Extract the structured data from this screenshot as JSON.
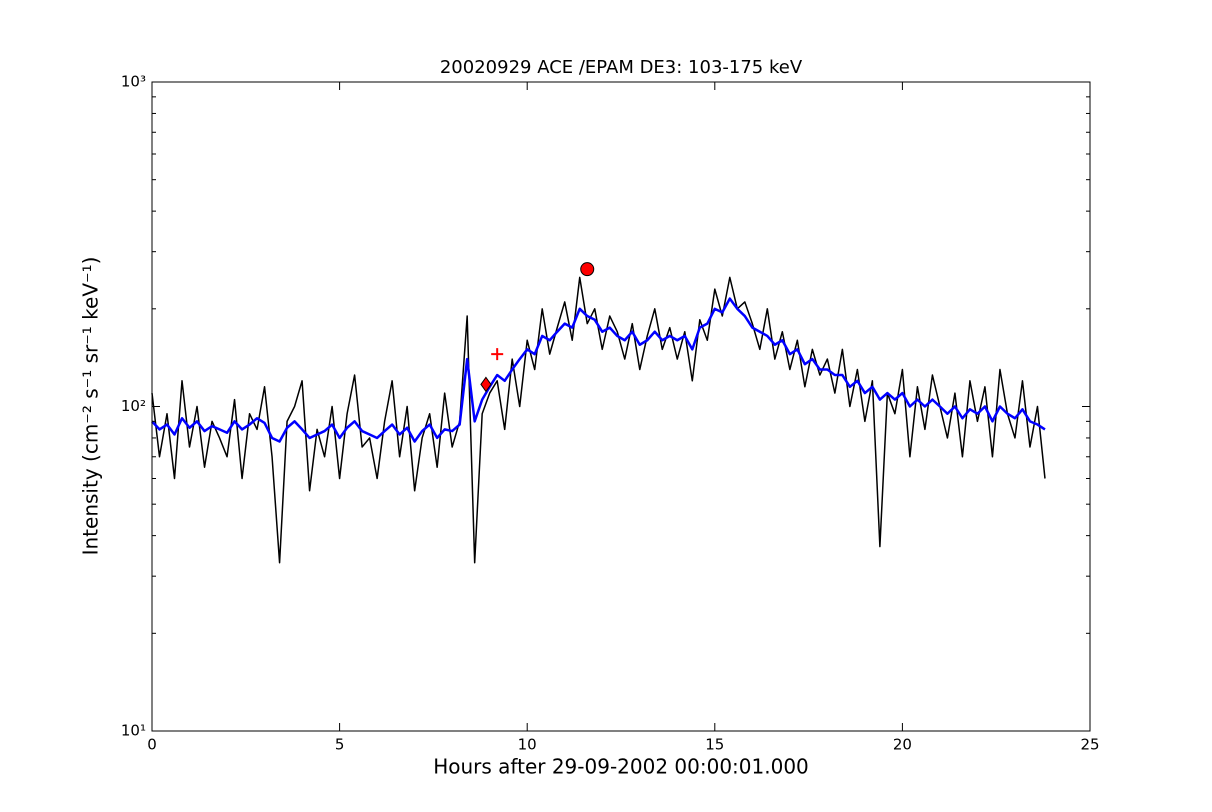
{
  "chart_data": {
    "type": "line",
    "title": "20020929 ACE /EPAM DE3: 103-175 keV",
    "xlabel": "Hours after 29-09-2002 00:00:01.000",
    "ylabel": "Intensity (cm⁻² s⁻¹ sr⁻¹ keV⁻¹)",
    "xlim": [
      0,
      25
    ],
    "ylim": [
      10,
      1000
    ],
    "ylog": true,
    "xticks": [
      0,
      5,
      10,
      15,
      20,
      25
    ],
    "yticks": [
      {
        "value": 10,
        "label": "10¹"
      },
      {
        "value": 100,
        "label": "10²"
      },
      {
        "value": 1000,
        "label": "10³"
      }
    ],
    "yminorticks": [
      20,
      30,
      40,
      50,
      60,
      70,
      80,
      90,
      200,
      300,
      400,
      500,
      600,
      700,
      800,
      900
    ],
    "x": [
      0,
      0.2,
      0.4,
      0.6,
      0.8,
      1,
      1.2,
      1.4,
      1.6,
      1.8,
      2,
      2.2,
      2.4,
      2.6,
      2.8,
      3,
      3.2,
      3.4,
      3.6,
      3.8,
      4,
      4.2,
      4.4,
      4.6,
      4.8,
      5,
      5.2,
      5.4,
      5.6,
      5.8,
      6,
      6.2,
      6.4,
      6.6,
      6.8,
      7,
      7.2,
      7.4,
      7.6,
      7.8,
      8,
      8.2,
      8.4,
      8.6,
      8.8,
      9,
      9.2,
      9.4,
      9.6,
      9.8,
      10,
      10.2,
      10.4,
      10.6,
      10.8,
      11,
      11.2,
      11.4,
      11.6,
      11.8,
      12,
      12.2,
      12.4,
      12.6,
      12.8,
      13,
      13.2,
      13.4,
      13.6,
      13.8,
      14,
      14.2,
      14.4,
      14.6,
      14.8,
      15,
      15.2,
      15.4,
      15.6,
      15.8,
      16,
      16.2,
      16.4,
      16.6,
      16.8,
      17,
      17.2,
      17.4,
      17.6,
      17.8,
      18,
      18.2,
      18.4,
      18.6,
      18.8,
      19,
      19.2,
      19.4,
      19.6,
      19.8,
      20,
      20.2,
      20.4,
      20.6,
      20.8,
      21,
      21.2,
      21.4,
      21.6,
      21.8,
      22,
      22.2,
      22.4,
      22.6,
      22.8,
      23,
      23.2,
      23.4,
      23.6,
      23.8
    ],
    "series": [
      {
        "color": "#000000",
        "values": [
          110,
          70,
          95,
          60,
          120,
          75,
          100,
          65,
          90,
          80,
          70,
          105,
          60,
          95,
          85,
          115,
          70,
          33,
          90,
          100,
          120,
          55,
          85,
          70,
          100,
          60,
          95,
          125,
          75,
          80,
          60,
          90,
          120,
          70,
          100,
          55,
          80,
          95,
          65,
          110,
          75,
          90,
          190,
          33,
          95,
          110,
          120,
          85,
          140,
          100,
          160,
          130,
          200,
          145,
          175,
          210,
          160,
          250,
          180,
          200,
          150,
          190,
          170,
          140,
          180,
          130,
          165,
          200,
          150,
          175,
          140,
          170,
          120,
          185,
          160,
          230,
          190,
          250,
          200,
          210,
          180,
          150,
          200,
          140,
          170,
          130,
          160,
          115,
          150,
          125,
          140,
          110,
          150,
          100,
          130,
          90,
          120,
          37,
          110,
          95,
          130,
          70,
          115,
          85,
          125,
          100,
          80,
          110,
          70,
          120,
          90,
          115,
          70,
          130,
          95,
          80,
          120,
          75,
          100,
          60
        ]
      },
      {
        "color": "#0000ff",
        "values": [
          90,
          85,
          88,
          82,
          92,
          86,
          90,
          84,
          87,
          85,
          83,
          90,
          85,
          88,
          92,
          89,
          80,
          78,
          86,
          90,
          85,
          80,
          82,
          84,
          88,
          80,
          86,
          90,
          84,
          82,
          80,
          84,
          88,
          82,
          86,
          78,
          84,
          88,
          80,
          85,
          84,
          88,
          140,
          90,
          105,
          115,
          125,
          120,
          130,
          140,
          150,
          145,
          165,
          160,
          170,
          180,
          175,
          200,
          190,
          185,
          170,
          175,
          165,
          160,
          170,
          155,
          160,
          170,
          160,
          165,
          160,
          165,
          150,
          175,
          180,
          200,
          195,
          215,
          200,
          190,
          175,
          170,
          165,
          155,
          160,
          145,
          150,
          135,
          140,
          130,
          130,
          125,
          125,
          115,
          120,
          110,
          115,
          105,
          110,
          105,
          110,
          100,
          105,
          100,
          105,
          100,
          95,
          100,
          92,
          98,
          95,
          100,
          90,
          100,
          95,
          92,
          98,
          90,
          88,
          85
        ]
      }
    ],
    "markers": [
      {
        "x": 8.9,
        "y": 117,
        "shape": "diamond",
        "color": "#ff0000"
      },
      {
        "x": 9.2,
        "y": 145,
        "shape": "plus",
        "color": "#ff0000"
      },
      {
        "x": 11.6,
        "y": 265,
        "shape": "circle",
        "color": "#ff0000"
      }
    ]
  }
}
